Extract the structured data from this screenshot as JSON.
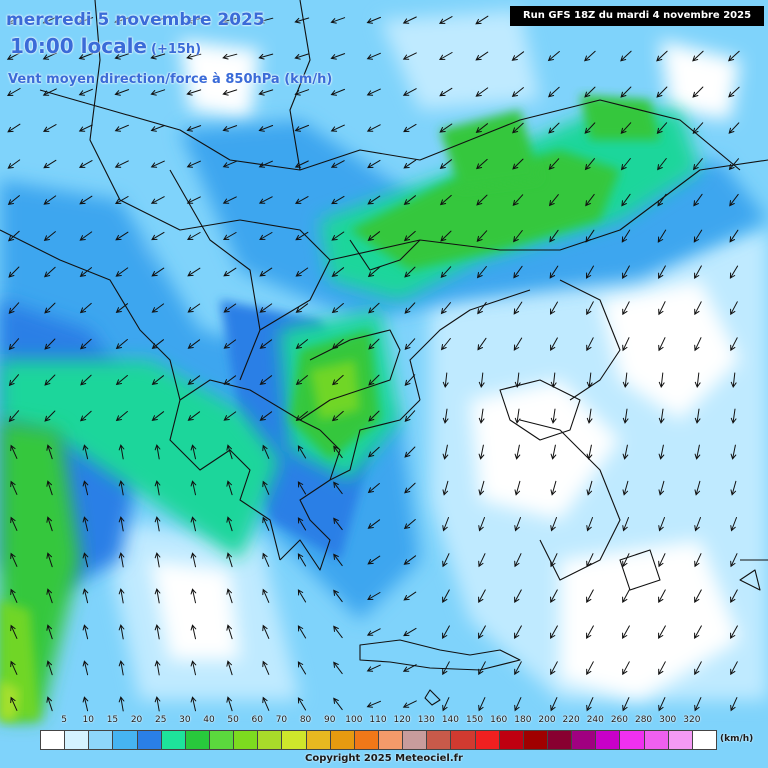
{
  "title": {
    "date": "mercredi 5 novembre 2025",
    "time": "10:00 locale",
    "time_offset": "(+15h)",
    "parameter": "Vent moyen direction/force à 850hPa (km/h)"
  },
  "run_label": "Run GFS 18Z du mardi 4 novembre 2025",
  "legend": {
    "unit": "(km/h)",
    "ticks": [
      "5",
      "10",
      "15",
      "20",
      "25",
      "30",
      "40",
      "50",
      "60",
      "70",
      "80",
      "90",
      "100",
      "110",
      "120",
      "130",
      "140",
      "150",
      "160",
      "180",
      "200",
      "220",
      "240",
      "260",
      "280",
      "300",
      "320"
    ],
    "colors": [
      "#ffffff",
      "#d4f2ff",
      "#8ed6fb",
      "#46b4f2",
      "#2a7fe6",
      "#1ee39b",
      "#28c93c",
      "#5bd93d",
      "#7ddc1f",
      "#a8dc2a",
      "#cfe62b",
      "#e8b820",
      "#e69a10",
      "#f07818",
      "#f49a6a",
      "#c89c9c",
      "#c85a4a",
      "#d03a30",
      "#f02020",
      "#c00010",
      "#a00000",
      "#880030",
      "#a00080",
      "#c800c8",
      "#f030f0",
      "#f060f0",
      "#f59af5",
      "#ffffff"
    ]
  },
  "map_colors": {
    "light": "#ffffff",
    "pale": "#bfeaff",
    "sky": "#7fd3fb",
    "blue": "#3ea6ef",
    "deep": "#2a7fe6",
    "teal": "#1fd69b",
    "green": "#36c73d",
    "lime": "#6fd628",
    "yellowgreen": "#a6e02e",
    "border": "#111111"
  },
  "copyright": "Copyright 2025 Meteociel.fr"
}
